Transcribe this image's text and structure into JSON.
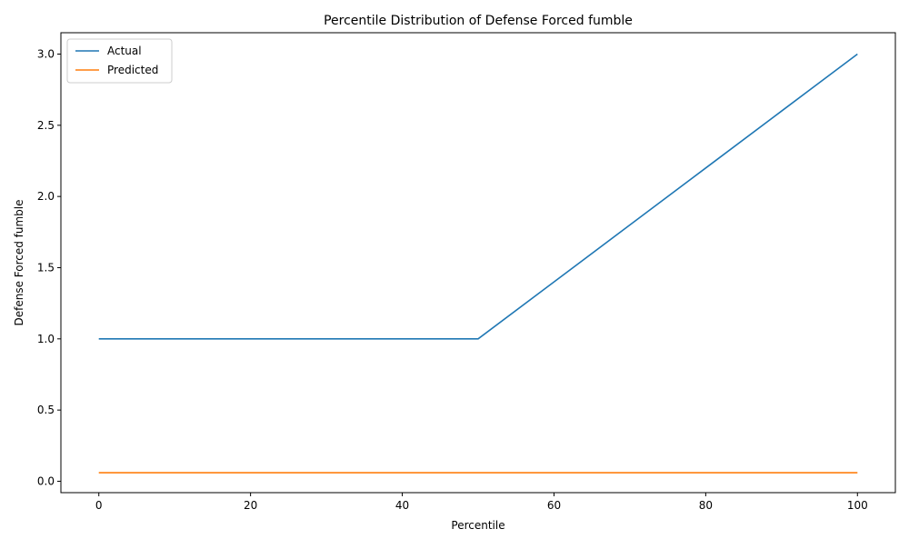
{
  "chart_data": {
    "type": "line",
    "title": "Percentile Distribution of Defense Forced fumble",
    "xlabel": "Percentile",
    "ylabel": "Defense Forced fumble",
    "xlim": [
      -5,
      105
    ],
    "ylim": [
      -0.08,
      3.15
    ],
    "xticks": [
      0,
      20,
      40,
      60,
      80,
      100
    ],
    "xtick_labels": [
      "0",
      "20",
      "40",
      "60",
      "80",
      "100"
    ],
    "yticks": [
      0.0,
      0.5,
      1.0,
      1.5,
      2.0,
      2.5,
      3.0
    ],
    "ytick_labels": [
      "0.0",
      "0.5",
      "1.0",
      "1.5",
      "2.0",
      "2.5",
      "3.0"
    ],
    "grid": false,
    "legend_position": "top-left",
    "series": [
      {
        "name": "Actual",
        "color": "#1f77b4",
        "x": [
          0,
          10,
          20,
          30,
          40,
          50,
          60,
          70,
          80,
          90,
          100
        ],
        "y": [
          1.0,
          1.0,
          1.0,
          1.0,
          1.0,
          1.0,
          1.4,
          1.8,
          2.2,
          2.6,
          3.0
        ]
      },
      {
        "name": "Predicted",
        "color": "#ff7f0e",
        "x": [
          0,
          10,
          20,
          30,
          40,
          50,
          60,
          70,
          80,
          90,
          100
        ],
        "y": [
          0.06,
          0.06,
          0.06,
          0.06,
          0.06,
          0.06,
          0.06,
          0.06,
          0.06,
          0.06,
          0.06
        ]
      }
    ]
  }
}
